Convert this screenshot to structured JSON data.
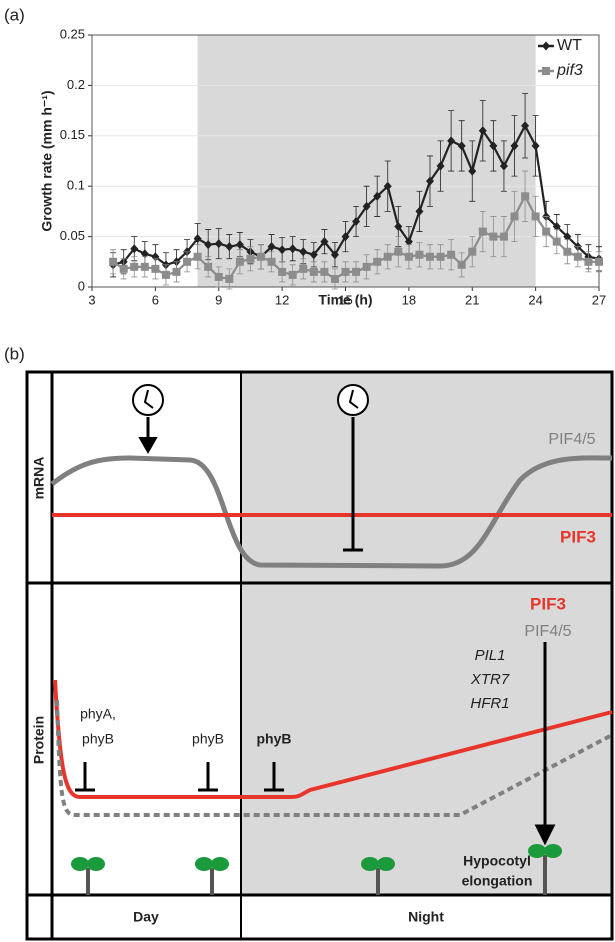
{
  "chart_data": {
    "type": "line",
    "panel_label": "(a)",
    "x_label": "Time (h)",
    "y_label": "Growth  rate (mm h⁻¹)",
    "x": [
      4,
      4.5,
      5,
      5.5,
      6,
      6.5,
      7,
      7.5,
      8,
      8.5,
      9,
      9.5,
      10,
      10.5,
      11,
      11.5,
      12,
      12.5,
      13,
      13.5,
      14,
      14.5,
      15,
      15.5,
      16,
      16.5,
      17,
      17.5,
      18,
      18.5,
      19,
      19.5,
      20,
      20.5,
      21,
      21.5,
      22,
      22.5,
      23,
      23.5,
      24,
      24.5,
      25,
      25.5,
      26,
      26.5,
      27
    ],
    "series": [
      {
        "name": "WT",
        "color": "#222222",
        "marker": "diamond",
        "values": [
          0.022,
          0.025,
          0.038,
          0.033,
          0.03,
          0.022,
          0.025,
          0.035,
          0.048,
          0.042,
          0.043,
          0.04,
          0.042,
          0.035,
          0.03,
          0.04,
          0.037,
          0.038,
          0.035,
          0.032,
          0.045,
          0.032,
          0.05,
          0.065,
          0.08,
          0.09,
          0.1,
          0.06,
          0.045,
          0.075,
          0.105,
          0.12,
          0.145,
          0.14,
          0.115,
          0.155,
          0.14,
          0.12,
          0.14,
          0.16,
          0.14,
          0.07,
          0.06,
          0.05,
          0.04,
          0.03,
          0.028
        ],
        "errors": [
          0.012,
          0.012,
          0.012,
          0.012,
          0.012,
          0.012,
          0.012,
          0.012,
          0.015,
          0.015,
          0.015,
          0.012,
          0.012,
          0.012,
          0.012,
          0.012,
          0.012,
          0.012,
          0.012,
          0.012,
          0.012,
          0.012,
          0.015,
          0.015,
          0.02,
          0.02,
          0.025,
          0.02,
          0.015,
          0.02,
          0.025,
          0.025,
          0.03,
          0.025,
          0.03,
          0.03,
          0.025,
          0.025,
          0.03,
          0.032,
          0.03,
          0.015,
          0.012,
          0.012,
          0.012,
          0.012,
          0.012
        ]
      },
      {
        "name": "pif3",
        "color": "#8c8c8c",
        "marker": "square",
        "values": [
          0.025,
          0.018,
          0.02,
          0.02,
          0.018,
          0.012,
          0.015,
          0.025,
          0.03,
          0.02,
          0.01,
          0.008,
          0.025,
          0.028,
          0.03,
          0.025,
          0.015,
          0.012,
          0.018,
          0.015,
          0.015,
          0.008,
          0.015,
          0.015,
          0.02,
          0.025,
          0.03,
          0.035,
          0.03,
          0.032,
          0.03,
          0.03,
          0.032,
          0.022,
          0.035,
          0.055,
          0.05,
          0.05,
          0.07,
          0.09,
          0.07,
          0.055,
          0.045,
          0.035,
          0.03,
          0.025,
          0.025
        ],
        "errors": [
          0.012,
          0.01,
          0.01,
          0.01,
          0.01,
          0.01,
          0.01,
          0.01,
          0.012,
          0.01,
          0.01,
          0.01,
          0.012,
          0.012,
          0.012,
          0.01,
          0.01,
          0.01,
          0.01,
          0.01,
          0.01,
          0.01,
          0.01,
          0.01,
          0.012,
          0.012,
          0.012,
          0.015,
          0.012,
          0.012,
          0.012,
          0.012,
          0.015,
          0.012,
          0.015,
          0.02,
          0.02,
          0.02,
          0.025,
          0.025,
          0.02,
          0.015,
          0.012,
          0.012,
          0.01,
          0.01,
          0.01
        ]
      }
    ],
    "xlim": [
      3,
      27
    ],
    "xticks": [
      3,
      6,
      9,
      12,
      15,
      18,
      21,
      24,
      27
    ],
    "ylim": [
      0,
      0.25
    ],
    "yticks": [
      0,
      0.05,
      0.1,
      0.15,
      0.2,
      0.25
    ],
    "grid": true,
    "legend": "upper right",
    "shade": [
      8,
      24
    ],
    "shade_color": "#d9d9d9"
  },
  "diagram": {
    "panel_label": "(b)",
    "mrna_label": "mRNA",
    "protein_label": "Protein",
    "mrna_pif45": "PIF4/5",
    "mrna_pif3": "PIF3",
    "protein_pif3": "PIF3",
    "protein_pif45": "PIF4/5",
    "targets": [
      "PIL1",
      "XTR7",
      "HFR1"
    ],
    "inhibitors": [
      "phyA,",
      "phyB",
      "phyB",
      "phyB"
    ],
    "outcome": [
      "Hypocotyl",
      "elongation"
    ],
    "day": "Day",
    "night": "Night"
  }
}
